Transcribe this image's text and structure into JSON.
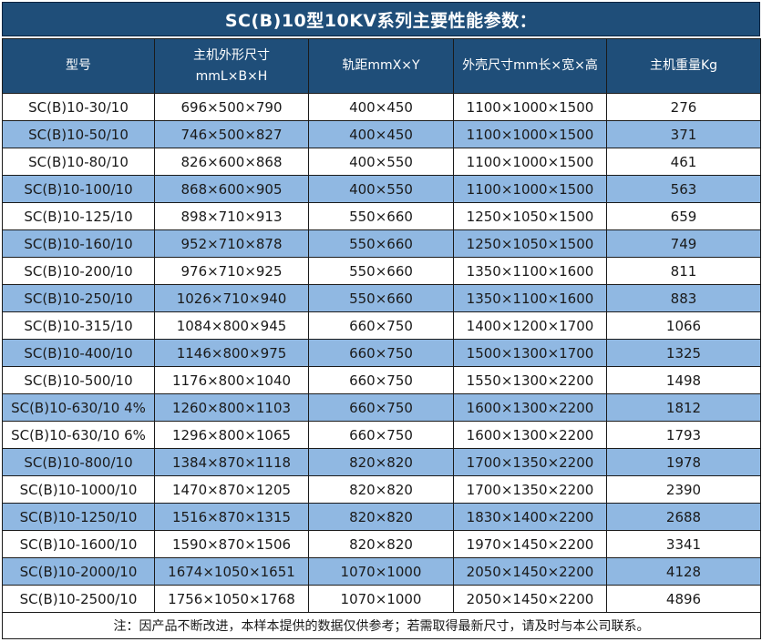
{
  "title": "SC(B)10型10KV系列主要性能参数：",
  "table": {
    "columns": [
      {
        "label": "型号",
        "sublabel": ""
      },
      {
        "label": "主机外形尺寸",
        "sublabel": "mmL×B×H"
      },
      {
        "label": "轨距mmX×Y",
        "sublabel": ""
      },
      {
        "label": "外壳尺寸mm长×宽×高",
        "sublabel": ""
      },
      {
        "label": "主机重量Kg",
        "sublabel": ""
      }
    ],
    "rows": [
      [
        "SC(B)10-30/10",
        "696×500×790",
        "400×450",
        "1100×1000×1500",
        "276"
      ],
      [
        "SC(B)10-50/10",
        "746×500×827",
        "400×450",
        "1100×1000×1500",
        "371"
      ],
      [
        "SC(B)10-80/10",
        "826×600×868",
        "400×550",
        "1100×1000×1500",
        "461"
      ],
      [
        "SC(B)10-100/10",
        "868×600×905",
        "400×550",
        "1100×1000×1500",
        "563"
      ],
      [
        "SC(B)10-125/10",
        "898×710×913",
        "550×660",
        "1250×1050×1500",
        "659"
      ],
      [
        "SC(B)10-160/10",
        "952×710×878",
        "550×660",
        "1250×1050×1500",
        "749"
      ],
      [
        "SC(B)10-200/10",
        "976×710×925",
        "550×660",
        "1350×1100×1600",
        "811"
      ],
      [
        "SC(B)10-250/10",
        "1026×710×940",
        "550×660",
        "1350×1100×1600",
        "883"
      ],
      [
        "SC(B)10-315/10",
        "1084×800×945",
        "660×750",
        "1400×1200×1700",
        "1066"
      ],
      [
        "SC(B)10-400/10",
        "1146×800×975",
        "660×750",
        "1500×1300×1700",
        "1325"
      ],
      [
        "SC(B)10-500/10",
        "1176×800×1040",
        "660×750",
        "1550×1300×2200",
        "1498"
      ],
      [
        "SC(B)10-630/10 4%",
        "1260×800×1103",
        "660×750",
        "1600×1300×2200",
        "1812"
      ],
      [
        "SC(B)10-630/10 6%",
        "1296×800×1065",
        "660×750",
        "1600×1300×2200",
        "1793"
      ],
      [
        "SC(B)10-800/10",
        "1384×870×1118",
        "820×820",
        "1700×1350×2200",
        "1978"
      ],
      [
        "SC(B)10-1000/10",
        "1470×870×1205",
        "820×820",
        "1700×1350×2200",
        "2390"
      ],
      [
        "SC(B)10-1250/10",
        "1516×870×1315",
        "820×820",
        "1830×1400×2200",
        "2688"
      ],
      [
        "SC(B)10-1600/10",
        "1590×870×1506",
        "820×820",
        "1970×1450×2200",
        "3341"
      ],
      [
        "SC(B)10-2000/10",
        "1674×1050×1651",
        "1070×1000",
        "2050×1450×2200",
        "4128"
      ],
      [
        "SC(B)10-2500/10",
        "1756×1050×1768",
        "1070×1000",
        "2050×1450×2200",
        "4896"
      ]
    ],
    "cell_names": [
      "model-cell",
      "dimensions-cell",
      "rail-gauge-cell",
      "shell-size-cell",
      "weight-cell"
    ]
  },
  "note": "注：因产品不断改进，本样本提供的数据仅供参考；若需取得最新尺寸，请及时与本公司联系。",
  "colors": {
    "header_bg": "#1F4E79",
    "stripe_bg": "#90B8E2",
    "border": "#1b1b1b",
    "header_text": "#ffffff",
    "body_text": "#1a1a1a"
  }
}
